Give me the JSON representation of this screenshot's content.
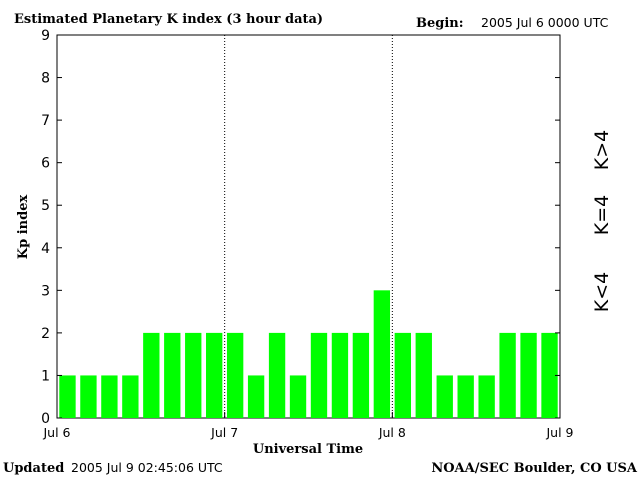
{
  "header": {
    "title": "Estimated Planetary K index (3 hour data)",
    "begin_label": "Begin:",
    "begin_value": "2005 Jul 6 0000 UTC"
  },
  "footer": {
    "updated_label": "Updated",
    "updated_value": "2005 Jul  9 02:45:06 UTC",
    "source": "NOAA/SEC Boulder, CO USA"
  },
  "legend": {
    "high": "K>4",
    "mid": "K=4",
    "low": "K<4",
    "colors": {
      "high": "#ff2a00",
      "mid": "#ffd800",
      "low": "#33ee33"
    }
  },
  "chart_data": {
    "type": "bar",
    "title": "Estimated Planetary K index (3 hour data)",
    "xlabel": "Universal Time",
    "ylabel": "Kp index",
    "ylim": [
      0,
      9
    ],
    "yticks": [
      "0",
      "1",
      "2",
      "3",
      "4",
      "5",
      "6",
      "7",
      "8",
      "9"
    ],
    "xticks": [
      "Jul 6",
      "Jul 7",
      "Jul 8",
      "Jul 9"
    ],
    "day_dividers": [
      "Jul 7",
      "Jul 8"
    ],
    "bar_color": "#00ff00",
    "values": [
      1,
      1,
      1,
      1,
      2,
      2,
      2,
      2,
      2,
      1,
      2,
      1,
      2,
      2,
      2,
      3,
      2,
      2,
      1,
      1,
      1,
      2,
      2,
      2
    ]
  }
}
